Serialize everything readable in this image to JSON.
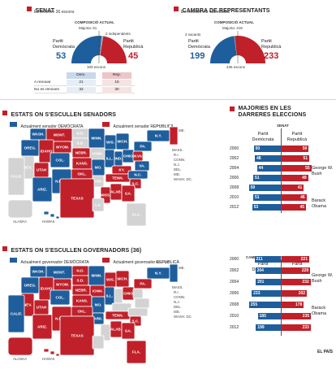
{
  "colors": {
    "dem": "#1f5e9c",
    "rep": "#c0202a",
    "none": "#d3d3d3",
    "light_dem": "#c9d8ea",
    "light_rep": "#ecc6c6"
  },
  "senate": {
    "title": "SENAT",
    "subtitle": "Es renoven 36 escons",
    "comp_title": "COMPOSICIÓ ACTUAL",
    "majority": "Majoria: 51",
    "independents": "2 independents",
    "total": "100 escons",
    "dem_label": "Partit Demòcrata",
    "rep_label": "Partit Republicà",
    "dem_seats": "53",
    "rep_seats": "45",
    "table": {
      "head_dem": "Dem.",
      "head_rep": "Rep.",
      "rows": [
        {
          "label": "A renovar",
          "dem": "21",
          "rep": "15"
        },
        {
          "label": "No es renoven",
          "dem": "32",
          "rep": "30"
        }
      ]
    }
  },
  "house": {
    "title": "CAMBRA DE REPRESENTANTS",
    "subtitle": "Es renoven els 435 escons",
    "comp_title": "COMPOSICIÓ ACTUAL",
    "majority": "Majoria: 218",
    "vacancies": "3 vacants",
    "total": "435 escons",
    "dem_label": "Partit Demòcrata",
    "rep_label": "Partit Republicà",
    "dem_seats": "199",
    "rep_seats": "233"
  },
  "senate_map": {
    "title": "ESTATS ON S'ESCULLEN SENADORS",
    "legend_dem": "Actualment senador DEMÒCRATA",
    "legend_rep": "Actualment senador REPUBLICÀ"
  },
  "gov_map": {
    "title": "ESTATS ON S'ESCULLEN GOVERNADORS (36)",
    "legend_dem": "Actualment governador DEMÒCRATA",
    "legend_rep": "Actualment governador REPUBLICÀ"
  },
  "maj_title": "MAJORIES EN LES DARRERES ELECCIONS",
  "party_heads": {
    "dem": "Partit Demòcrata",
    "rep": "Partit Republicà"
  },
  "presidents": {
    "bush": "George W. Bush",
    "obama": "Barack Obama"
  },
  "source": "EL PAÍS",
  "chart_data": [
    {
      "type": "bar",
      "title": "SENAT",
      "categories": [
        "2000",
        "2002",
        "2004",
        "2006",
        "2008",
        "2010",
        "2012"
      ],
      "series": [
        {
          "name": "Partit Demòcrata",
          "values": [
            50,
            48,
            44,
            51,
            59,
            51,
            53
          ]
        },
        {
          "name": "Partit Republicà",
          "values": [
            50,
            51,
            55,
            49,
            41,
            46,
            45
          ]
        }
      ]
    },
    {
      "type": "bar",
      "title": "CAMBRA DE REPRESENTANTS",
      "categories": [
        "2000",
        "2002",
        "2004",
        "2006",
        "2008",
        "2010",
        "2012"
      ],
      "series": [
        {
          "name": "Partit Demòcrata",
          "values": [
            211,
            204,
            201,
            233,
            255,
            185,
            199
          ]
        },
        {
          "name": "Partit Republicà",
          "values": [
            221,
            229,
            232,
            202,
            178,
            235,
            233
          ]
        }
      ]
    },
    {
      "type": "pie",
      "title": "SENAT",
      "categories": [
        "Partit Demòcrata",
        "2 independents",
        "Partit Republicà"
      ],
      "values": [
        53,
        2,
        45
      ]
    },
    {
      "type": "pie",
      "title": "CAMBRA DE REPRESENTANTS",
      "categories": [
        "Partit Demòcrata",
        "3 vacants",
        "Partit Republicà"
      ],
      "values": [
        199,
        3,
        233
      ]
    }
  ],
  "state_labels": {
    "senate": [
      "WASH.",
      "MONT.",
      "N.D.",
      "MINN.",
      "OREG.",
      "IDAHO",
      "WYOM.",
      "S.D.",
      "WIS.",
      "MICH.",
      "N.Y.",
      "NEV.",
      "UTAH",
      "NEBR.",
      "IOWA",
      "ILL.",
      "IND.",
      "OHIO",
      "PA.",
      "CALIF.",
      "COL.",
      "KANS.",
      "MO.",
      "KY.",
      "W.VA.",
      "VA.",
      "ARIZ.",
      "N.MEX.",
      "OKL.",
      "ARK.",
      "TENN.",
      "N.C.",
      "S.C.",
      "MISS.",
      "ALAB.",
      "GA.",
      "TEXAS",
      "LA.",
      "FLA.",
      "ALASKA",
      "HAWAII",
      "ME.",
      "VT.",
      "N.H.",
      "MASS.",
      "R.I.",
      "CONN.",
      "N.J.",
      "DEL.",
      "MD.",
      "WASH. DC."
    ],
    "gov": [
      "WASH.",
      "MONT.",
      "N.D.",
      "MINN.",
      "OREG.",
      "IDAHO",
      "WYOM.",
      "S.D.",
      "WIS.",
      "MICH.",
      "N.Y.",
      "NEV.",
      "UTAH",
      "NEBR.",
      "IOWA",
      "ILL.",
      "OHIO",
      "PA.",
      "CALIF.",
      "COL.",
      "KANS.",
      "MO.",
      "ARIZ.",
      "N.MÈX.",
      "OKL.",
      "ARK.",
      "TENN.",
      "S.C.",
      "ALAB.",
      "GA.",
      "TEXAS",
      "FLA.",
      "ALASKA",
      "HAWAII",
      "ME.",
      "VT.",
      "N.H.",
      "MASS.",
      "R.I.",
      "CONN.",
      "N.J.",
      "DEL.",
      "MD.",
      "WASH. DC."
    ]
  }
}
